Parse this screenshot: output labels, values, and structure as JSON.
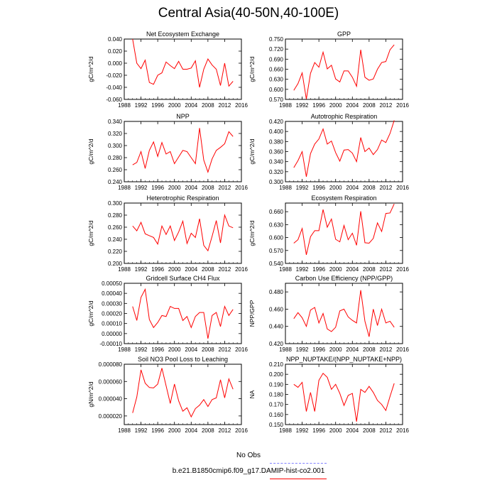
{
  "title": "Central Asia(40-50N,40-100E)",
  "legend": {
    "entries": [
      {
        "label": "No Obs",
        "color": "#8080ff",
        "dash": true
      },
      {
        "label": "b.e21.B1850cmip6.f09_g17.DAMIP-hist-co2.001",
        "color": "#ff0000",
        "dash": false
      }
    ]
  },
  "chart_data": [
    {
      "type": "line",
      "title": "Net Ecosystem Exchange",
      "ylabel": "gC/m^2/d",
      "xlim": [
        1988,
        2016
      ],
      "xticks": [
        1988,
        1992,
        1996,
        2000,
        2004,
        2008,
        2012,
        2016
      ],
      "ylim": [
        -0.06,
        0.04
      ],
      "yticks": [
        "-0.060",
        "-0.040",
        "-0.020",
        "0.000",
        "0.020",
        "0.040"
      ],
      "ytick_values": [
        -0.06,
        -0.04,
        -0.02,
        0.0,
        0.02,
        0.04
      ],
      "x": [
        1990,
        1991,
        1992,
        1993,
        1994,
        1995,
        1996,
        1997,
        1998,
        1999,
        2000,
        2001,
        2002,
        2003,
        2004,
        2005,
        2006,
        2007,
        2008,
        2009,
        2010,
        2011,
        2012,
        2013,
        2014
      ],
      "series": [
        {
          "color": "#ff0000",
          "values": [
            0.04,
            0.0,
            -0.009,
            0.005,
            -0.032,
            -0.035,
            -0.02,
            -0.016,
            0.002,
            -0.004,
            -0.009,
            0.003,
            -0.01,
            -0.01,
            -0.008,
            0.004,
            -0.04,
            -0.01,
            0.007,
            -0.003,
            -0.01,
            -0.037,
            0.0,
            -0.038,
            -0.03
          ]
        }
      ]
    },
    {
      "type": "line",
      "title": "GPP",
      "ylabel": "gC/m^2/d",
      "xlim": [
        1988,
        2016
      ],
      "xticks": [
        1988,
        1992,
        1996,
        2000,
        2004,
        2008,
        2012,
        2016
      ],
      "ylim": [
        0.57,
        0.75
      ],
      "yticks": [
        "0.570",
        "0.600",
        "0.630",
        "0.660",
        "0.690",
        "0.720",
        "0.750"
      ],
      "ytick_values": [
        0.57,
        0.6,
        0.63,
        0.66,
        0.69,
        0.72,
        0.75
      ],
      "x": [
        1990,
        1991,
        1992,
        1993,
        1994,
        1995,
        1996,
        1997,
        1998,
        1999,
        2000,
        2001,
        2002,
        2003,
        2004,
        2005,
        2006,
        2007,
        2008,
        2009,
        2010,
        2011,
        2012,
        2013,
        2014
      ],
      "series": [
        {
          "color": "#ff0000",
          "values": [
            0.597,
            0.617,
            0.649,
            0.571,
            0.648,
            0.68,
            0.666,
            0.711,
            0.661,
            0.672,
            0.631,
            0.622,
            0.655,
            0.655,
            0.636,
            0.609,
            0.718,
            0.636,
            0.627,
            0.631,
            0.66,
            0.68,
            0.683,
            0.718,
            0.733
          ]
        }
      ]
    },
    {
      "type": "line",
      "title": "NPP",
      "ylabel": "gC/m^2/d",
      "xlim": [
        1988,
        2016
      ],
      "xticks": [
        1988,
        1992,
        1996,
        2000,
        2004,
        2008,
        2012,
        2016
      ],
      "ylim": [
        0.24,
        0.34
      ],
      "yticks": [
        "0.240",
        "0.260",
        "0.280",
        "0.300",
        "0.320",
        "0.340"
      ],
      "ytick_values": [
        0.24,
        0.26,
        0.28,
        0.3,
        0.32,
        0.34
      ],
      "x": [
        1990,
        1991,
        1992,
        1993,
        1994,
        1995,
        1996,
        1997,
        1998,
        1999,
        2000,
        2001,
        2002,
        2003,
        2004,
        2005,
        2006,
        2007,
        2008,
        2009,
        2010,
        2011,
        2012,
        2013,
        2014
      ],
      "series": [
        {
          "color": "#ff0000",
          "values": [
            0.268,
            0.272,
            0.29,
            0.262,
            0.292,
            0.306,
            0.282,
            0.305,
            0.286,
            0.29,
            0.27,
            0.281,
            0.292,
            0.29,
            0.28,
            0.27,
            0.329,
            0.276,
            0.256,
            0.278,
            0.292,
            0.297,
            0.303,
            0.323,
            0.315
          ]
        }
      ]
    },
    {
      "type": "line",
      "title": "Autotrophic Respiration",
      "ylabel": "gC/m^2/d",
      "xlim": [
        1988,
        2016
      ],
      "xticks": [
        1988,
        1992,
        1996,
        2000,
        2004,
        2008,
        2012,
        2016
      ],
      "ylim": [
        0.3,
        0.42
      ],
      "yticks": [
        "0.300",
        "0.320",
        "0.340",
        "0.360",
        "0.380",
        "0.400",
        "0.420"
      ],
      "ytick_values": [
        0.3,
        0.32,
        0.34,
        0.36,
        0.38,
        0.4,
        0.42
      ],
      "x": [
        1990,
        1991,
        1992,
        1993,
        1994,
        1995,
        1996,
        1997,
        1998,
        1999,
        2000,
        2001,
        2002,
        2003,
        2004,
        2005,
        2006,
        2007,
        2008,
        2009,
        2010,
        2011,
        2012,
        2013,
        2014
      ],
      "series": [
        {
          "color": "#ff0000",
          "values": [
            0.328,
            0.342,
            0.36,
            0.31,
            0.356,
            0.375,
            0.385,
            0.405,
            0.375,
            0.381,
            0.358,
            0.341,
            0.363,
            0.364,
            0.357,
            0.34,
            0.388,
            0.36,
            0.367,
            0.354,
            0.364,
            0.383,
            0.378,
            0.396,
            0.422
          ]
        }
      ]
    },
    {
      "type": "line",
      "title": "Heterotrophic Respiration",
      "ylabel": "gC/m^2/d",
      "xlim": [
        1988,
        2016
      ],
      "xticks": [
        1988,
        1992,
        1996,
        2000,
        2004,
        2008,
        2012,
        2016
      ],
      "ylim": [
        0.2,
        0.3
      ],
      "yticks": [
        "0.200",
        "0.220",
        "0.240",
        "0.260",
        "0.280",
        "0.300"
      ],
      "ytick_values": [
        0.2,
        0.22,
        0.24,
        0.26,
        0.28,
        0.3
      ],
      "x": [
        1990,
        1991,
        1992,
        1993,
        1994,
        1995,
        1996,
        1997,
        1998,
        1999,
        2000,
        2001,
        2002,
        2003,
        2004,
        2005,
        2006,
        2007,
        2008,
        2009,
        2010,
        2011,
        2012,
        2013,
        2014
      ],
      "series": [
        {
          "color": "#ff0000",
          "values": [
            0.262,
            0.254,
            0.268,
            0.249,
            0.246,
            0.243,
            0.232,
            0.262,
            0.248,
            0.262,
            0.238,
            0.252,
            0.27,
            0.233,
            0.25,
            0.243,
            0.274,
            0.23,
            0.221,
            0.245,
            0.271,
            0.234,
            0.28,
            0.262,
            0.259
          ]
        }
      ]
    },
    {
      "type": "line",
      "title": "Ecosystem Respiration",
      "ylabel": "gC/m^2/d",
      "xlim": [
        1988,
        2016
      ],
      "xticks": [
        1988,
        1992,
        1996,
        2000,
        2004,
        2008,
        2012,
        2016
      ],
      "ylim": [
        0.54,
        0.68
      ],
      "yticks": [
        "0.540",
        "0.570",
        "0.600",
        "0.630",
        "0.660"
      ],
      "ytick_values": [
        0.54,
        0.57,
        0.6,
        0.63,
        0.66
      ],
      "x": [
        1990,
        1991,
        1992,
        1993,
        1994,
        1995,
        1996,
        1997,
        1998,
        1999,
        2000,
        2001,
        2002,
        2003,
        2004,
        2005,
        2006,
        2007,
        2008,
        2009,
        2010,
        2011,
        2012,
        2013,
        2014
      ],
      "series": [
        {
          "color": "#ff0000",
          "values": [
            0.587,
            0.595,
            0.621,
            0.56,
            0.602,
            0.616,
            0.616,
            0.665,
            0.624,
            0.643,
            0.596,
            0.59,
            0.628,
            0.595,
            0.61,
            0.582,
            0.661,
            0.588,
            0.587,
            0.598,
            0.634,
            0.614,
            0.656,
            0.657,
            0.678
          ]
        }
      ]
    },
    {
      "type": "line",
      "title": "Gridcell Surface CH4 Flux",
      "ylabel": "gC/m^2/d",
      "xlim": [
        1988,
        2016
      ],
      "xticks": [
        1988,
        1992,
        1996,
        2000,
        2004,
        2008,
        2012,
        2016
      ],
      "ylim": [
        -0.0001,
        0.0005
      ],
      "yticks": [
        "-0.00010",
        "0.00000",
        "0.00010",
        "0.00020",
        "0.00030",
        "0.00040",
        "0.00050"
      ],
      "ytick_values": [
        -0.0001,
        0.0,
        0.0001,
        0.0002,
        0.0003,
        0.0004,
        0.0005
      ],
      "x": [
        1990,
        1991,
        1992,
        1993,
        1994,
        1995,
        1996,
        1997,
        1998,
        1999,
        2000,
        2001,
        2002,
        2003,
        2004,
        2005,
        2006,
        2007,
        2008,
        2009,
        2010,
        2011,
        2012,
        2013,
        2014
      ],
      "series": [
        {
          "color": "#ff0000",
          "values": [
            0.00027,
            0.00013,
            0.00036,
            0.00044,
            0.00014,
            6e-05,
            0.00011,
            0.00018,
            0.00017,
            0.00027,
            0.00025,
            0.00025,
            0.00013,
            0.00017,
            6e-05,
            0.00017,
            0.00021,
            0.00021,
            -5e-05,
            0.00018,
            0.00021,
            7e-05,
            0.00027,
            0.00018,
            0.00024
          ]
        }
      ]
    },
    {
      "type": "line",
      "title": "Carbon Use Efficiency (NPP/GPP)",
      "ylabel": "NPP/GPP",
      "xlim": [
        1988,
        2016
      ],
      "xticks": [
        1988,
        1992,
        1996,
        2000,
        2004,
        2008,
        2012,
        2016
      ],
      "ylim": [
        0.42,
        0.49
      ],
      "yticks": [
        "0.420",
        "0.440",
        "0.460",
        "0.480"
      ],
      "ytick_values": [
        0.42,
        0.44,
        0.46,
        0.48
      ],
      "x": [
        1990,
        1991,
        1992,
        1993,
        1994,
        1995,
        1996,
        1997,
        1998,
        1999,
        2000,
        2001,
        2002,
        2003,
        2004,
        2005,
        2006,
        2007,
        2008,
        2009,
        2010,
        2011,
        2012,
        2013,
        2014
      ],
      "series": [
        {
          "color": "#ff0000",
          "values": [
            0.449,
            0.456,
            0.45,
            0.44,
            0.459,
            0.462,
            0.444,
            0.455,
            0.437,
            0.434,
            0.439,
            0.458,
            0.46,
            0.451,
            0.447,
            0.444,
            0.482,
            0.446,
            0.428,
            0.46,
            0.441,
            0.46,
            0.444,
            0.446,
            0.439
          ]
        }
      ]
    },
    {
      "type": "line",
      "title": "Soil NO3 Pool Loss to Leaching",
      "ylabel": "gN/m^2/d",
      "xlim": [
        1988,
        2016
      ],
      "xticks": [
        1988,
        1992,
        1996,
        2000,
        2004,
        2008,
        2012,
        2016
      ],
      "ylim": [
        1e-05,
        8e-05
      ],
      "yticks": [
        "0.000020",
        "0.000040",
        "0.000060",
        "0.000080"
      ],
      "ytick_values": [
        2e-05,
        4e-05,
        6e-05,
        8e-05
      ],
      "x": [
        1990,
        1991,
        1992,
        1993,
        1994,
        1995,
        1996,
        1997,
        1998,
        1999,
        2000,
        2001,
        2002,
        2003,
        2004,
        2005,
        2006,
        2007,
        2008,
        2009,
        2010,
        2011,
        2012,
        2013,
        2014
      ],
      "series": [
        {
          "color": "#ff0000",
          "values": [
            2.35e-05,
            4.2e-05,
            7.35e-05,
            5.8e-05,
            5.3e-05,
            5.25e-05,
            5.7e-05,
            7.55e-05,
            5.5e-05,
            3.45e-05,
            5.7e-05,
            3.75e-05,
            2.55e-05,
            2.95e-05,
            1.9e-05,
            2.85e-05,
            3.25e-05,
            3.9e-05,
            3.1e-05,
            3.9e-05,
            4.1e-05,
            6.2e-05,
            4.1e-05,
            6.3e-05,
            5.1e-05
          ]
        }
      ]
    },
    {
      "type": "line",
      "title": "NPP_NUPTAKE/(NPP_NUPTAKE+NPP)",
      "ylabel": "NA",
      "xlim": [
        1988,
        2016
      ],
      "xticks": [
        1988,
        1992,
        1996,
        2000,
        2004,
        2008,
        2012,
        2016
      ],
      "ylim": [
        0.15,
        0.21
      ],
      "yticks": [
        "0.150",
        "0.160",
        "0.170",
        "0.180",
        "0.190",
        "0.200",
        "0.210"
      ],
      "ytick_values": [
        0.15,
        0.16,
        0.17,
        0.18,
        0.19,
        0.2,
        0.21
      ],
      "x": [
        1990,
        1991,
        1992,
        1993,
        1994,
        1995,
        1996,
        1997,
        1998,
        1999,
        2000,
        2001,
        2002,
        2003,
        2004,
        2005,
        2006,
        2007,
        2008,
        2009,
        2010,
        2011,
        2012,
        2013,
        2014
      ],
      "series": [
        {
          "color": "#ff0000",
          "values": [
            0.19,
            0.187,
            0.192,
            0.163,
            0.182,
            0.163,
            0.194,
            0.201,
            0.197,
            0.185,
            0.19,
            0.181,
            0.169,
            0.179,
            0.181,
            0.153,
            0.185,
            0.182,
            0.188,
            0.182,
            0.174,
            0.17,
            0.164,
            0.178,
            0.191
          ]
        }
      ]
    }
  ]
}
